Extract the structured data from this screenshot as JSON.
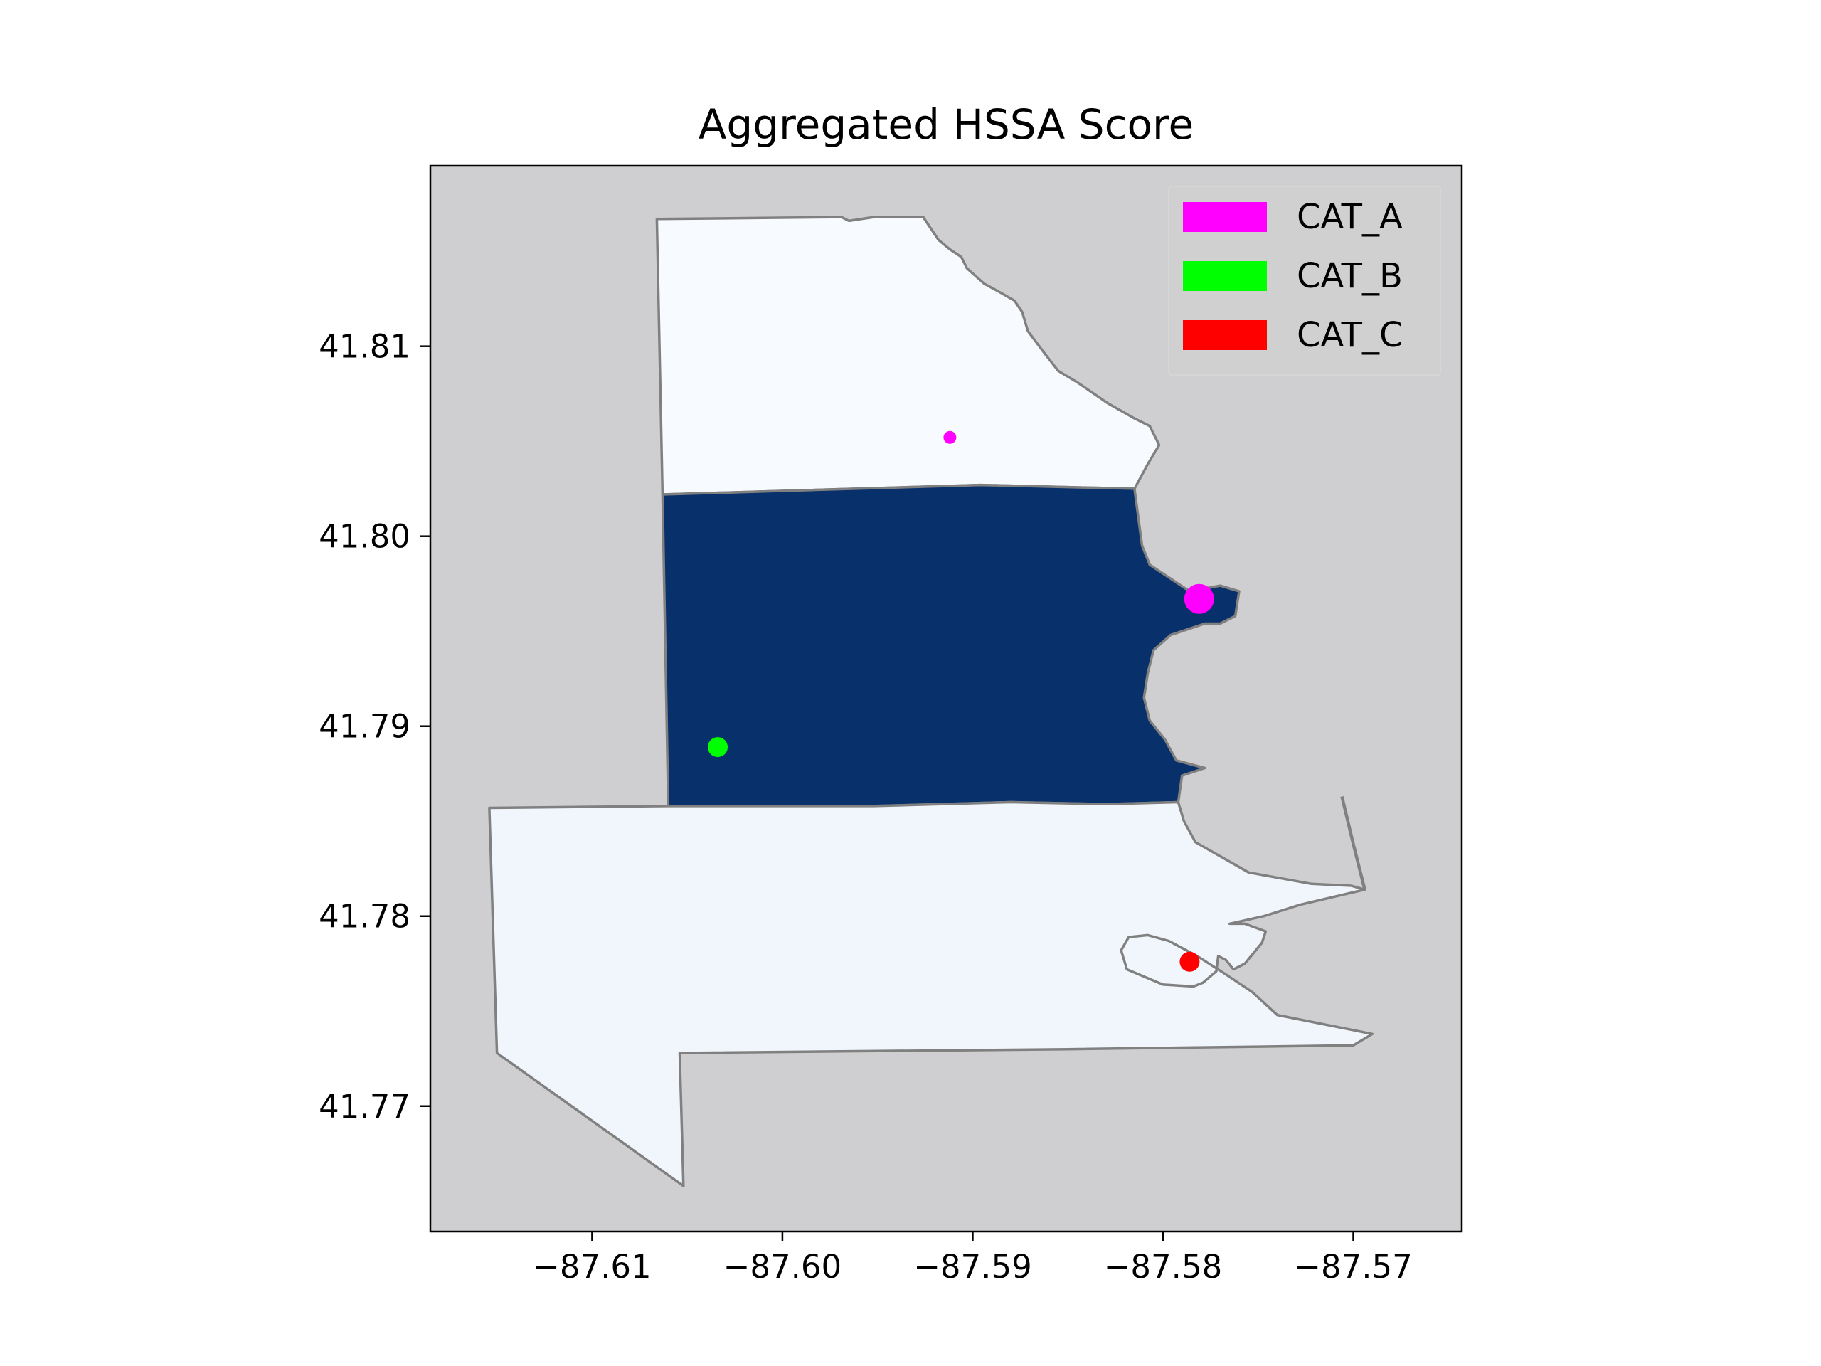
{
  "chart_data": {
    "type": "choropleth-map",
    "title": "Aggregated HSSA Score",
    "xlabel": "",
    "ylabel": "",
    "xlim": [
      -87.6185,
      -87.5643
    ],
    "ylim": [
      41.7634,
      41.8195
    ],
    "x_ticks": [
      {
        "value": -87.61,
        "label": "−87.61"
      },
      {
        "value": -87.6,
        "label": "−87.60"
      },
      {
        "value": -87.59,
        "label": "−87.59"
      },
      {
        "value": -87.58,
        "label": "−87.58"
      },
      {
        "value": -87.57,
        "label": "−87.57"
      }
    ],
    "y_ticks": [
      {
        "value": 41.81,
        "label": "41.81"
      },
      {
        "value": 41.8,
        "label": "41.80"
      },
      {
        "value": 41.79,
        "label": "41.79"
      },
      {
        "value": 41.78,
        "label": "41.78"
      },
      {
        "value": 41.77,
        "label": "41.77"
      }
    ],
    "grid": false,
    "background_color": "#cfcfd1",
    "boundary_color": "#808080",
    "regions": [
      {
        "color": "#f7fbff",
        "polygon": [
          [
            -87.6066,
            41.8167
          ],
          [
            -87.5969,
            41.8168
          ],
          [
            -87.5965,
            41.8166
          ],
          [
            -87.5952,
            41.8168
          ],
          [
            -87.5926,
            41.8168
          ],
          [
            -87.5922,
            41.8162
          ],
          [
            -87.5918,
            41.8156
          ],
          [
            -87.5912,
            41.8151
          ],
          [
            -87.5906,
            41.8147
          ],
          [
            -87.5903,
            41.8141
          ],
          [
            -87.5894,
            41.8133
          ],
          [
            -87.5885,
            41.8128
          ],
          [
            -87.5878,
            41.8124
          ],
          [
            -87.5874,
            41.8118
          ],
          [
            -87.5871,
            41.8108
          ],
          [
            -87.5862,
            41.8096
          ],
          [
            -87.5855,
            41.8087
          ],
          [
            -87.5845,
            41.8081
          ],
          [
            -87.5829,
            41.807
          ],
          [
            -87.5815,
            41.8062
          ],
          [
            -87.5807,
            41.8058
          ],
          [
            -87.5802,
            41.8048
          ],
          [
            -87.5808,
            41.8038
          ],
          [
            -87.5815,
            41.8025
          ],
          [
            -87.5896,
            41.8027
          ],
          [
            -87.6063,
            41.8022
          ]
        ]
      },
      {
        "color": "#08306b",
        "polygon": [
          [
            -87.6063,
            41.8022
          ],
          [
            -87.5896,
            41.8027
          ],
          [
            -87.5815,
            41.8025
          ],
          [
            -87.5813,
            41.801
          ],
          [
            -87.5811,
            41.7995
          ],
          [
            -87.5807,
            41.7985
          ],
          [
            -87.5795,
            41.7977
          ],
          [
            -87.5786,
            41.7971
          ],
          [
            -87.577,
            41.7974
          ],
          [
            -87.576,
            41.7971
          ],
          [
            -87.5762,
            41.7958
          ],
          [
            -87.577,
            41.7954
          ],
          [
            -87.5778,
            41.7954
          ],
          [
            -87.5796,
            41.7948
          ],
          [
            -87.5805,
            41.794
          ],
          [
            -87.5808,
            41.7928
          ],
          [
            -87.581,
            41.7915
          ],
          [
            -87.5807,
            41.7903
          ],
          [
            -87.5799,
            41.7893
          ],
          [
            -87.5793,
            41.7882
          ],
          [
            -87.5778,
            41.7878
          ],
          [
            -87.579,
            41.7874
          ],
          [
            -87.5792,
            41.786
          ],
          [
            -87.583,
            41.7859
          ],
          [
            -87.588,
            41.786
          ],
          [
            -87.5952,
            41.7858
          ],
          [
            -87.606,
            41.7858
          ]
        ]
      },
      {
        "color": "#f1f6fc",
        "polygon": [
          [
            -87.6154,
            41.7857
          ],
          [
            -87.606,
            41.7858
          ],
          [
            -87.5952,
            41.7858
          ],
          [
            -87.588,
            41.786
          ],
          [
            -87.583,
            41.7859
          ],
          [
            -87.5792,
            41.786
          ],
          [
            -87.5789,
            41.785
          ],
          [
            -87.5783,
            41.7839
          ],
          [
            -87.5755,
            41.7823
          ],
          [
            -87.5722,
            41.7817
          ],
          [
            -87.5701,
            41.7816
          ],
          [
            -87.5694,
            41.7814
          ],
          [
            -87.5728,
            41.7806
          ],
          [
            -87.5747,
            41.78
          ],
          [
            -87.5765,
            41.7796
          ],
          [
            -87.5757,
            41.7796
          ],
          [
            -87.5746,
            41.7792
          ],
          [
            -87.5748,
            41.7786
          ],
          [
            -87.5757,
            41.7775
          ],
          [
            -87.5763,
            41.7772
          ],
          [
            -87.5767,
            41.7777
          ],
          [
            -87.5771,
            41.7779
          ],
          [
            -87.5772,
            41.7771
          ],
          [
            -87.5779,
            41.7765
          ],
          [
            -87.5784,
            41.7763
          ],
          [
            -87.58,
            41.7764
          ],
          [
            -87.5819,
            41.7772
          ],
          [
            -87.5822,
            41.7782
          ],
          [
            -87.5818,
            41.7789
          ],
          [
            -87.5808,
            41.779
          ],
          [
            -87.5797,
            41.7787
          ],
          [
            -87.5782,
            41.7779
          ],
          [
            -87.5768,
            41.777
          ],
          [
            -87.5753,
            41.776
          ],
          [
            -87.574,
            41.7748
          ],
          [
            -87.569,
            41.7738
          ],
          [
            -87.57,
            41.7732
          ],
          [
            -87.585,
            41.773
          ],
          [
            -87.6054,
            41.7728
          ],
          [
            -87.6052,
            41.7658
          ],
          [
            -87.615,
            41.7728
          ]
        ]
      }
    ],
    "extra_lines": [
      {
        "points": [
          [
            -87.5694,
            41.7814
          ],
          [
            -87.57,
            41.7838
          ],
          [
            -87.5706,
            41.7863
          ]
        ]
      }
    ],
    "points": [
      {
        "category": "CAT_A",
        "x": -87.5912,
        "y": 41.8052,
        "size": "small",
        "color": "#ff00ff"
      },
      {
        "category": "CAT_A",
        "x": -87.5781,
        "y": 41.7967,
        "size": "large",
        "color": "#ff00ff"
      },
      {
        "category": "CAT_B",
        "x": -87.6034,
        "y": 41.7889,
        "size": "medium",
        "color": "#00ff00"
      },
      {
        "category": "CAT_C",
        "x": -87.5786,
        "y": 41.7776,
        "size": "medium",
        "color": "#ff0000"
      }
    ],
    "legend": {
      "placement": "top-right",
      "entries": [
        {
          "label": "CAT_A",
          "color": "#ff00ff"
        },
        {
          "label": "CAT_B",
          "color": "#00ff00"
        },
        {
          "label": "CAT_C",
          "color": "#ff0000"
        }
      ]
    }
  }
}
